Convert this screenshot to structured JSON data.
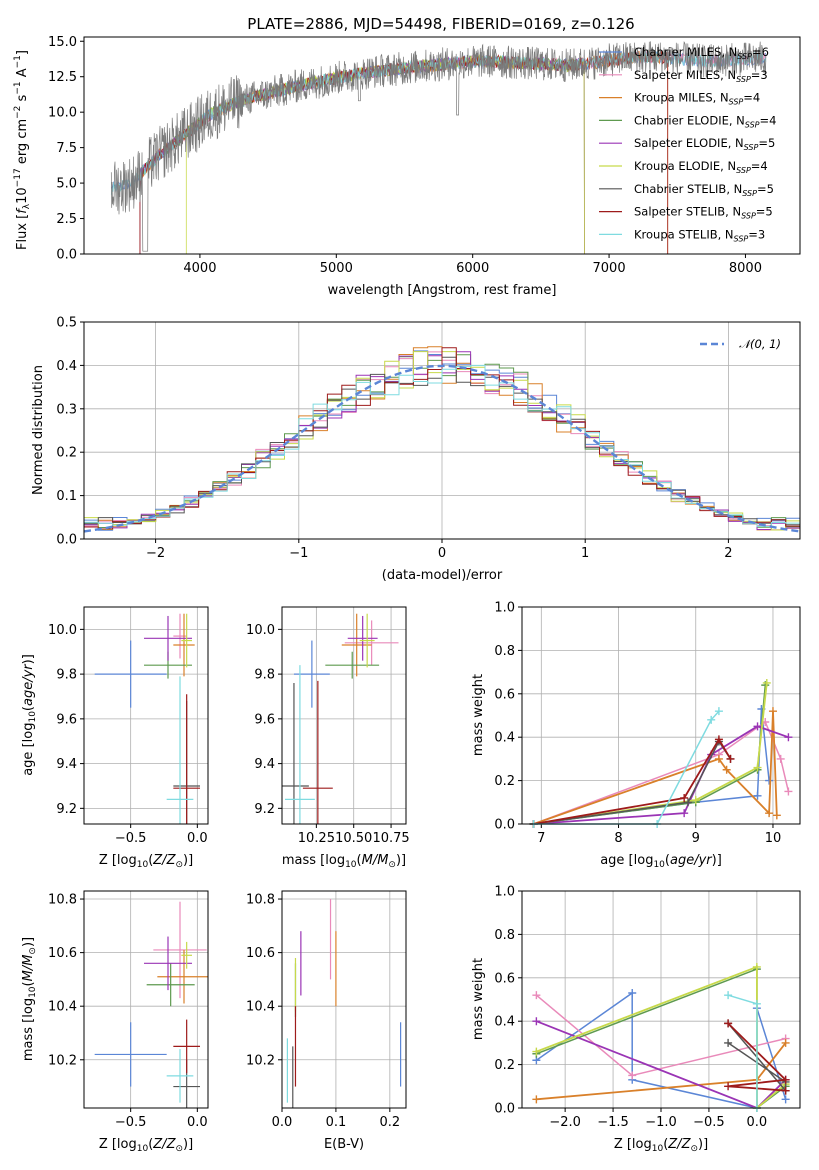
{
  "colors": {
    "chabrier_miles": "#5b86d6",
    "salpeter_miles": "#e98aba",
    "kroupa_miles": "#d9802a",
    "chabrier_elodie": "#5e9a4f",
    "salpeter_elodie": "#9a34b5",
    "kroupa_elodie": "#c7d94a",
    "chabrier_stelib": "#555555",
    "salpeter_stelib": "#9e1b1b",
    "kroupa_stelib": "#7fdbe0",
    "gauss": "#5b86d6"
  },
  "chart_data": [
    {
      "id": "spectrum",
      "type": "line",
      "title": "PLATE=2886, MJD=54498, FIBERID=0169, z=0.126",
      "xlabel": "wavelength [Angstrom, rest frame]",
      "ylabel": "Flux [f_λ 10^-17 erg cm^-2 s^-1 A^-1]",
      "xlim": [
        3150,
        8400
      ],
      "ylim": [
        0,
        15.3
      ],
      "xticks": [
        "4000",
        "5000",
        "6000",
        "7000",
        "8000"
      ],
      "yticks": [
        "0.0",
        "2.5",
        "5.0",
        "7.5",
        "10.0",
        "12.5",
        "15.0"
      ],
      "legend_position": "top-right",
      "legend": [
        "Chabrier MILES, N_SSP=6",
        "Salpeter MILES, N_SSP=3",
        "Kroupa MILES, N_SSP=4",
        "Chabrier ELODIE, N_SSP=4",
        "Salpeter ELODIE, N_SSP=5",
        "Kroupa ELODIE, N_SSP=4",
        "Chabrier STELIB, N_SSP=5",
        "Salpeter STELIB, N_SSP=5",
        "Kroupa STELIB, N_SSP=3"
      ],
      "continuum": {
        "x": [
          3350,
          3500,
          3700,
          3900,
          4100,
          4300,
          4500,
          4700,
          4900,
          5100,
          5300,
          5500,
          5700,
          5900,
          6100,
          6300,
          6500,
          6700,
          6900,
          7100,
          7300,
          7500,
          7700,
          7900,
          8100
        ],
        "y": [
          4.6,
          5.0,
          7.0,
          8.5,
          10.0,
          10.8,
          11.3,
          11.8,
          12.2,
          12.6,
          12.9,
          13.1,
          13.3,
          13.5,
          13.6,
          13.5,
          13.4,
          13.3,
          13.5,
          13.8,
          13.9,
          13.8,
          13.6,
          13.7,
          13.8
        ]
      }
    },
    {
      "id": "residuals",
      "type": "line",
      "xlabel": "(data-model)/error",
      "ylabel": "Normed distribution",
      "xlim": [
        -2.5,
        2.5
      ],
      "ylim": [
        0,
        0.5
      ],
      "xticks": [
        "−2",
        "−1",
        "0",
        "1",
        "2"
      ],
      "yticks": [
        "0.0",
        "0.1",
        "0.2",
        "0.3",
        "0.4",
        "0.5"
      ],
      "legend": [
        "𝒩(0, 1)"
      ],
      "legend_position": "top-right",
      "bin_width": 0.1
    },
    {
      "id": "age_vs_Z",
      "type": "scatter",
      "xlabel": "Z [log10(Z/Z⊙)]",
      "ylabel": "age [log10(age/yr)]",
      "xlim": [
        -0.85,
        0.08
      ],
      "ylim": [
        9.13,
        10.1
      ],
      "xticks": [
        "−0.5",
        "0.0"
      ],
      "yticks": [
        "9.2",
        "9.4",
        "9.6",
        "9.8",
        "10.0"
      ],
      "points": [
        {
          "x": -0.5,
          "y": 9.8,
          "xerr": 0.27,
          "yerr": 0.15,
          "c": "chabrier_miles"
        },
        {
          "x": -0.13,
          "y": 9.97,
          "xerr": 0.05,
          "yerr": 0.1,
          "c": "salpeter_miles"
        },
        {
          "x": -0.1,
          "y": 9.93,
          "xerr": 0.08,
          "yerr": 0.14,
          "c": "kroupa_miles"
        },
        {
          "x": -0.22,
          "y": 9.84,
          "xerr": 0.18,
          "yerr": 0.06,
          "c": "chabrier_elodie"
        },
        {
          "x": -0.22,
          "y": 9.96,
          "xerr": 0.18,
          "yerr": 0.1,
          "c": "salpeter_elodie"
        },
        {
          "x": -0.08,
          "y": 9.95,
          "xerr": 0.04,
          "yerr": 0.12,
          "c": "kroupa_elodie"
        },
        {
          "x": -0.08,
          "y": 9.3,
          "xerr": 0.1,
          "yerr": 0.38,
          "c": "chabrier_stelib"
        },
        {
          "x": -0.08,
          "y": 9.29,
          "xerr": 0.1,
          "yerr": 0.42,
          "c": "salpeter_stelib"
        },
        {
          "x": -0.13,
          "y": 9.24,
          "xerr": 0.1,
          "yerr": 0.55,
          "c": "kroupa_stelib"
        }
      ]
    },
    {
      "id": "age_vs_mass",
      "type": "scatter",
      "xlabel": "mass [log10(M/M⊙)]",
      "ylabel": "",
      "xlim": [
        10.02,
        10.85
      ],
      "ylim": [
        9.13,
        10.1
      ],
      "xticks": [
        "10.25",
        "10.50",
        "10.75"
      ],
      "yticks": [
        "9.2",
        "9.4",
        "9.6",
        "9.8",
        "10.0"
      ],
      "points": [
        {
          "x": 10.22,
          "y": 9.8,
          "xerr": 0.12,
          "yerr": 0.15,
          "c": "chabrier_miles"
        },
        {
          "x": 10.62,
          "y": 9.94,
          "xerr": 0.18,
          "yerr": 0.1,
          "c": "salpeter_miles"
        },
        {
          "x": 10.52,
          "y": 9.93,
          "xerr": 0.1,
          "yerr": 0.14,
          "c": "kroupa_miles"
        },
        {
          "x": 10.49,
          "y": 9.84,
          "xerr": 0.18,
          "yerr": 0.06,
          "c": "chabrier_elodie"
        },
        {
          "x": 10.56,
          "y": 9.96,
          "xerr": 0.1,
          "yerr": 0.1,
          "c": "salpeter_elodie"
        },
        {
          "x": 10.59,
          "y": 9.95,
          "xerr": 0.05,
          "yerr": 0.12,
          "c": "kroupa_elodie"
        },
        {
          "x": 10.1,
          "y": 9.3,
          "xerr": 0.1,
          "yerr": 0.46,
          "c": "chabrier_stelib"
        },
        {
          "x": 10.26,
          "y": 9.29,
          "xerr": 0.1,
          "yerr": 0.48,
          "c": "salpeter_stelib"
        },
        {
          "x": 10.14,
          "y": 9.24,
          "xerr": 0.1,
          "yerr": 0.6,
          "c": "kroupa_stelib"
        }
      ]
    },
    {
      "id": "mass_vs_Z",
      "type": "scatter",
      "xlabel": "Z [log10(Z/Z⊙)]",
      "ylabel": "mass [log10(M/M⊙)]",
      "xlim": [
        -0.85,
        0.08
      ],
      "ylim": [
        10.02,
        10.83
      ],
      "xticks": [
        "−0.5",
        "0.0"
      ],
      "yticks": [
        "10.2",
        "10.4",
        "10.6",
        "10.8"
      ],
      "points": [
        {
          "x": -0.5,
          "y": 10.22,
          "xerr": 0.27,
          "yerr": 0.12,
          "c": "chabrier_miles"
        },
        {
          "x": -0.13,
          "y": 10.61,
          "xerr": 0.2,
          "yerr": 0.18,
          "c": "salpeter_miles"
        },
        {
          "x": -0.1,
          "y": 10.51,
          "xerr": 0.2,
          "yerr": 0.1,
          "c": "kroupa_miles"
        },
        {
          "x": -0.2,
          "y": 10.48,
          "xerr": 0.18,
          "yerr": 0.08,
          "c": "chabrier_elodie"
        },
        {
          "x": -0.22,
          "y": 10.56,
          "xerr": 0.18,
          "yerr": 0.1,
          "c": "salpeter_elodie"
        },
        {
          "x": -0.08,
          "y": 10.59,
          "xerr": 0.04,
          "yerr": 0.05,
          "c": "kroupa_elodie"
        },
        {
          "x": -0.08,
          "y": 10.1,
          "xerr": 0.1,
          "yerr": 0.1,
          "c": "chabrier_stelib"
        },
        {
          "x": -0.08,
          "y": 10.25,
          "xerr": 0.1,
          "yerr": 0.1,
          "c": "salpeter_stelib"
        },
        {
          "x": -0.13,
          "y": 10.14,
          "xerr": 0.1,
          "yerr": 0.1,
          "c": "kroupa_stelib"
        }
      ]
    },
    {
      "id": "mass_vs_ebv",
      "type": "scatter",
      "xlabel": "E(B-V)",
      "ylabel": "",
      "xlim": [
        0.0,
        0.23
      ],
      "ylim": [
        10.02,
        10.83
      ],
      "xticks": [
        "0.0",
        "0.1",
        "0.2"
      ],
      "yticks": [
        "10.2",
        "10.4",
        "10.6",
        "10.8"
      ],
      "points": [
        {
          "x": 0.22,
          "y": 10.22,
          "yerr": 0.12,
          "c": "chabrier_miles"
        },
        {
          "x": 0.09,
          "y": 10.65,
          "yerr": 0.15,
          "c": "salpeter_miles"
        },
        {
          "x": 0.1,
          "y": 10.54,
          "yerr": 0.14,
          "c": "kroupa_miles"
        },
        {
          "x": 0.025,
          "y": 10.46,
          "yerr": 0.1,
          "c": "chabrier_elodie"
        },
        {
          "x": 0.035,
          "y": 10.56,
          "yerr": 0.12,
          "c": "salpeter_elodie"
        },
        {
          "x": 0.025,
          "y": 10.48,
          "yerr": 0.1,
          "c": "kroupa_elodie"
        },
        {
          "x": 0.02,
          "y": 10.13,
          "yerr": 0.12,
          "c": "chabrier_stelib"
        },
        {
          "x": 0.025,
          "y": 10.25,
          "yerr": 0.15,
          "c": "salpeter_stelib"
        },
        {
          "x": 0.01,
          "y": 10.16,
          "yerr": 0.12,
          "c": "kroupa_stelib"
        }
      ]
    },
    {
      "id": "weight_vs_age",
      "type": "line",
      "xlabel": "age [log10(age/yr)]",
      "ylabel": "mass weight",
      "xlim": [
        6.75,
        10.35
      ],
      "ylim": [
        0,
        1.0
      ],
      "xticks": [
        "7",
        "8",
        "9",
        "10"
      ],
      "yticks": [
        "0.0",
        "0.2",
        "0.4",
        "0.6",
        "0.8",
        "1.0"
      ],
      "series": [
        {
          "c": "chabrier_miles",
          "x": [
            6.9,
            9.0,
            9.8,
            9.85,
            9.95
          ],
          "y": [
            0.0,
            0.1,
            0.13,
            0.53,
            0.2
          ]
        },
        {
          "c": "salpeter_miles",
          "x": [
            6.9,
            9.3,
            9.9,
            10.1,
            10.2
          ],
          "y": [
            0.0,
            0.32,
            0.47,
            0.3,
            0.15
          ]
        },
        {
          "c": "kroupa_miles",
          "x": [
            6.9,
            9.3,
            9.4,
            9.95,
            10.0,
            10.05
          ],
          "y": [
            0.0,
            0.3,
            0.25,
            0.05,
            0.52,
            0.04
          ]
        },
        {
          "c": "chabrier_elodie",
          "x": [
            6.9,
            9.0,
            9.8,
            9.9
          ],
          "y": [
            0.0,
            0.1,
            0.25,
            0.64
          ]
        },
        {
          "c": "salpeter_elodie",
          "x": [
            6.9,
            8.85,
            9.2,
            9.8,
            10.2
          ],
          "y": [
            0.0,
            0.05,
            0.32,
            0.45,
            0.4
          ]
        },
        {
          "c": "kroupa_elodie",
          "x": [
            6.9,
            9.0,
            9.8,
            9.92
          ],
          "y": [
            0.0,
            0.11,
            0.26,
            0.65
          ]
        },
        {
          "c": "chabrier_stelib",
          "x": [
            6.9,
            8.9,
            9.3,
            9.45
          ],
          "y": [
            0.0,
            0.1,
            0.38,
            0.3
          ]
        },
        {
          "c": "salpeter_stelib",
          "x": [
            6.9,
            8.85,
            9.3,
            9.45
          ],
          "y": [
            0.0,
            0.12,
            0.39,
            0.3
          ]
        },
        {
          "c": "kroupa_stelib",
          "x": [
            6.9,
            8.5,
            9.2,
            9.3
          ],
          "y": [
            0.0,
            0.0,
            0.48,
            0.52
          ]
        }
      ]
    },
    {
      "id": "weight_vs_Z",
      "type": "line",
      "xlabel": "Z [log10(Z/Z⊙)]",
      "ylabel": "mass weight",
      "xlim": [
        -2.45,
        0.45
      ],
      "ylim": [
        0,
        1.0
      ],
      "xticks": [
        "−2.0",
        "−1.5",
        "−1.0",
        "−0.5",
        "0.0"
      ],
      "yticks": [
        "0.0",
        "0.2",
        "0.4",
        "0.6",
        "0.8",
        "1.0"
      ],
      "series": [
        {
          "c": "chabrier_miles",
          "x": [
            -2.3,
            -1.3,
            -1.3,
            0.0,
            0.0,
            0.3
          ],
          "y": [
            0.22,
            0.53,
            0.13,
            0.0,
            0.46,
            0.04
          ]
        },
        {
          "c": "salpeter_miles",
          "x": [
            -2.3,
            -1.3,
            0.3
          ],
          "y": [
            0.52,
            0.15,
            0.32
          ]
        },
        {
          "c": "kroupa_miles",
          "x": [
            -2.3,
            0.0,
            0.3
          ],
          "y": [
            0.04,
            0.13,
            0.3
          ]
        },
        {
          "c": "chabrier_elodie",
          "x": [
            -2.3,
            0.0,
            0.0,
            0.3
          ],
          "y": [
            0.25,
            0.64,
            0.0,
            0.1
          ]
        },
        {
          "c": "salpeter_elodie",
          "x": [
            -2.3,
            0.0,
            0.3
          ],
          "y": [
            0.4,
            0.0,
            0.13
          ]
        },
        {
          "c": "kroupa_elodie",
          "x": [
            -2.3,
            0.0,
            0.0,
            0.3
          ],
          "y": [
            0.26,
            0.65,
            0.0,
            0.11
          ]
        },
        {
          "c": "chabrier_stelib",
          "x": [
            -0.3,
            0.3,
            0.3,
            -0.3
          ],
          "y": [
            0.3,
            0.12,
            0.08,
            0.39
          ]
        },
        {
          "c": "salpeter_stelib",
          "x": [
            -0.3,
            0.3,
            -0.3,
            0.3
          ],
          "y": [
            0.39,
            0.13,
            0.1,
            0.08
          ]
        },
        {
          "c": "kroupa_stelib",
          "x": [
            -0.3,
            0.0,
            0.0
          ],
          "y": [
            0.52,
            0.48,
            0.0
          ]
        }
      ]
    }
  ]
}
